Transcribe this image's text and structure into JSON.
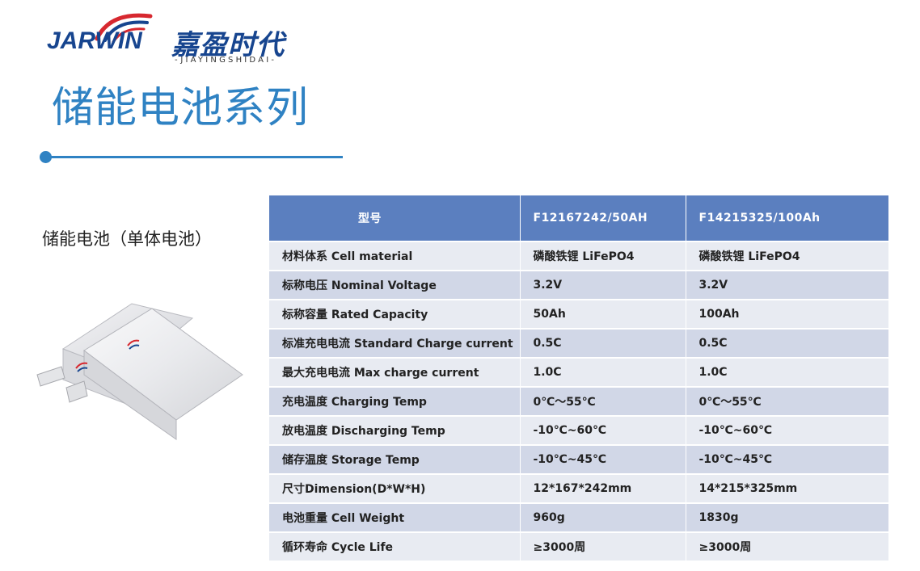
{
  "brand": {
    "name_en": "JARWIN",
    "name_cn": "嘉盈时代",
    "pinyin": "-JIAYINGSHIDAI-",
    "colors": {
      "navy": "#17458f",
      "red": "#d7282f",
      "accent_blue": "#2f82c3"
    }
  },
  "page": {
    "title": "储能电池系列",
    "product_label": "储能电池（单体电池）"
  },
  "table": {
    "columns": [
      "型号",
      "F12167242/50AH",
      "F14215325/100Ah"
    ],
    "rows": [
      [
        "材料体系 Cell material",
        "磷酸铁锂 LiFePO4",
        "磷酸铁锂 LiFePO4"
      ],
      [
        "标称电压 Nominal Voltage",
        "3.2V",
        "3.2V"
      ],
      [
        "标称容量 Rated Capacity",
        "50Ah",
        "100Ah"
      ],
      [
        "标准充电电流 Standard Charge current",
        "0.5C",
        "0.5C"
      ],
      [
        "最大充电电流 Max charge current",
        "1.0C",
        "1.0C"
      ],
      [
        "充电温度 Charging Temp",
        "0℃～55℃",
        "0℃～55℃"
      ],
      [
        "放电温度 Discharging Temp",
        "-10℃~60℃",
        "-10℃~60℃"
      ],
      [
        "储存温度 Storage Temp",
        "-10℃~45℃",
        "-10℃~45℃"
      ],
      [
        "尺寸Dimension(D*W*H)",
        "12*167*242mm",
        "14*215*325mm"
      ],
      [
        "电池重量 Cell Weight",
        "960g",
        "1830g"
      ],
      [
        "循环寿命 Cycle Life",
        "≥3000周",
        "≥3000周"
      ]
    ],
    "colors": {
      "header": "#5b7fbf",
      "row_light": "#e8ebf2",
      "row_dark": "#d1d7e7"
    }
  },
  "icons": {
    "logo_arc": "swoosh-arc-icon",
    "battery": "pouch-battery-image",
    "title_dot": "bullet-dot-icon"
  }
}
